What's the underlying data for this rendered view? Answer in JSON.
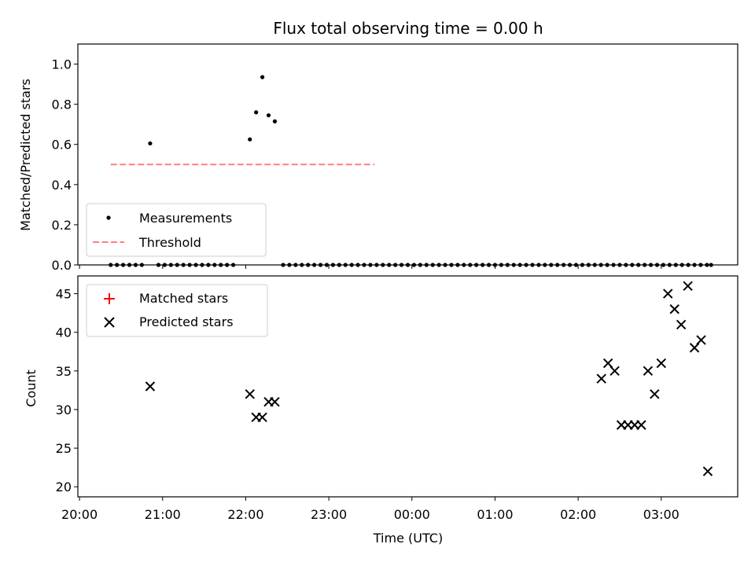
{
  "title": "Flux total observing time = 0.00 h",
  "colors": {
    "measurement": "#000000",
    "threshold": "#ff7f7f",
    "matched": "#ff0000",
    "predicted": "#000000"
  },
  "chart_data": [
    {
      "type": "scatter",
      "ylabel": "Matched/Predicted stars",
      "ylim": [
        0,
        1.1
      ],
      "yticks": [
        "0.0",
        "0.2",
        "0.4",
        "0.6",
        "0.8",
        "1.0"
      ],
      "ytick_values": [
        0,
        0.2,
        0.4,
        0.6,
        0.8,
        1.0
      ],
      "legend": [
        "Measurements",
        "Threshold"
      ],
      "legend_position": "lower-left",
      "x_unit": "UTC time (hours since 20:00)",
      "threshold": 0.5,
      "threshold_x": [
        0.375,
        3.55
      ],
      "series": [
        {
          "name": "Measurements",
          "marker": "dot",
          "x": [
            0.375,
            0.45,
            0.525,
            0.6,
            0.675,
            0.75,
            0.85,
            0.95,
            1.025,
            1.1,
            1.175,
            1.25,
            1.325,
            1.4,
            1.475,
            1.55,
            1.625,
            1.7,
            1.775,
            1.85,
            2.05,
            2.125,
            2.2,
            2.275,
            2.35,
            2.45,
            2.525,
            2.6,
            2.675,
            2.75,
            2.825,
            2.9,
            2.975,
            3.05,
            3.125,
            3.2,
            3.275,
            3.35,
            3.425,
            3.5,
            3.575,
            3.65,
            3.725,
            3.8,
            3.875,
            3.95,
            4.025,
            4.1,
            4.175,
            4.25,
            4.325,
            4.4,
            4.475,
            4.55,
            4.625,
            4.7,
            4.775,
            4.85,
            4.925,
            5.0,
            5.075,
            5.15,
            5.225,
            5.3,
            5.375,
            5.45,
            5.525,
            5.6,
            5.675,
            5.75,
            5.825,
            5.9,
            5.975,
            6.05,
            6.125,
            6.2,
            6.275,
            6.35,
            6.425,
            6.5,
            6.575,
            6.65,
            6.725,
            6.8,
            6.875,
            6.95,
            7.025,
            7.1,
            7.175,
            7.25,
            7.325,
            7.4,
            7.475,
            7.55,
            7.6
          ],
          "y": [
            0,
            0,
            0,
            0,
            0,
            0,
            0.605,
            0,
            0,
            0,
            0,
            0,
            0,
            0,
            0,
            0,
            0,
            0,
            0,
            0,
            0.625,
            0.76,
            0.935,
            0.745,
            0.715,
            0,
            0,
            0,
            0,
            0,
            0,
            0,
            0,
            0,
            0,
            0,
            0,
            0,
            0,
            0,
            0,
            0,
            0,
            0,
            0,
            0,
            0,
            0,
            0,
            0,
            0,
            0,
            0,
            0,
            0,
            0,
            0,
            0,
            0,
            0,
            0,
            0,
            0,
            0,
            0,
            0,
            0,
            0,
            0,
            0,
            0,
            0,
            0,
            0,
            0,
            0,
            0,
            0,
            0,
            0,
            0,
            0,
            0,
            0,
            0,
            0,
            0,
            0,
            0,
            0,
            0,
            0,
            0,
            0,
            0
          ]
        }
      ]
    },
    {
      "type": "scatter",
      "xlabel": "Time (UTC)",
      "ylabel": "Count",
      "ylim": [
        18.7,
        47.3
      ],
      "yticks": [
        "20",
        "25",
        "30",
        "35",
        "40",
        "45"
      ],
      "ytick_values": [
        20,
        25,
        30,
        35,
        40,
        45
      ],
      "xlim": [
        -0.02,
        7.92
      ],
      "xticks": [
        "20:00",
        "21:00",
        "22:00",
        "23:00",
        "00:00",
        "01:00",
        "02:00",
        "03:00"
      ],
      "xtick_values": [
        0,
        1,
        2,
        3,
        4,
        5,
        6,
        7
      ],
      "legend": [
        "Matched stars",
        "Predicted stars"
      ],
      "legend_position": "upper-left",
      "series": [
        {
          "name": "Matched stars",
          "marker": "plus",
          "x": [],
          "y": []
        },
        {
          "name": "Predicted stars",
          "marker": "x",
          "x": [
            0.85,
            2.05,
            2.125,
            2.2,
            2.275,
            2.35,
            6.28,
            6.36,
            6.44,
            6.52,
            6.6,
            6.68,
            6.76,
            6.84,
            6.92,
            7.0,
            7.08,
            7.16,
            7.24,
            7.32,
            7.4,
            7.48,
            7.56
          ],
          "y": [
            33,
            32,
            29,
            29,
            31,
            31,
            34,
            36,
            35,
            28,
            28,
            28,
            28,
            35,
            32,
            36,
            45,
            43,
            41,
            46,
            38,
            39,
            22
          ]
        }
      ]
    }
  ]
}
